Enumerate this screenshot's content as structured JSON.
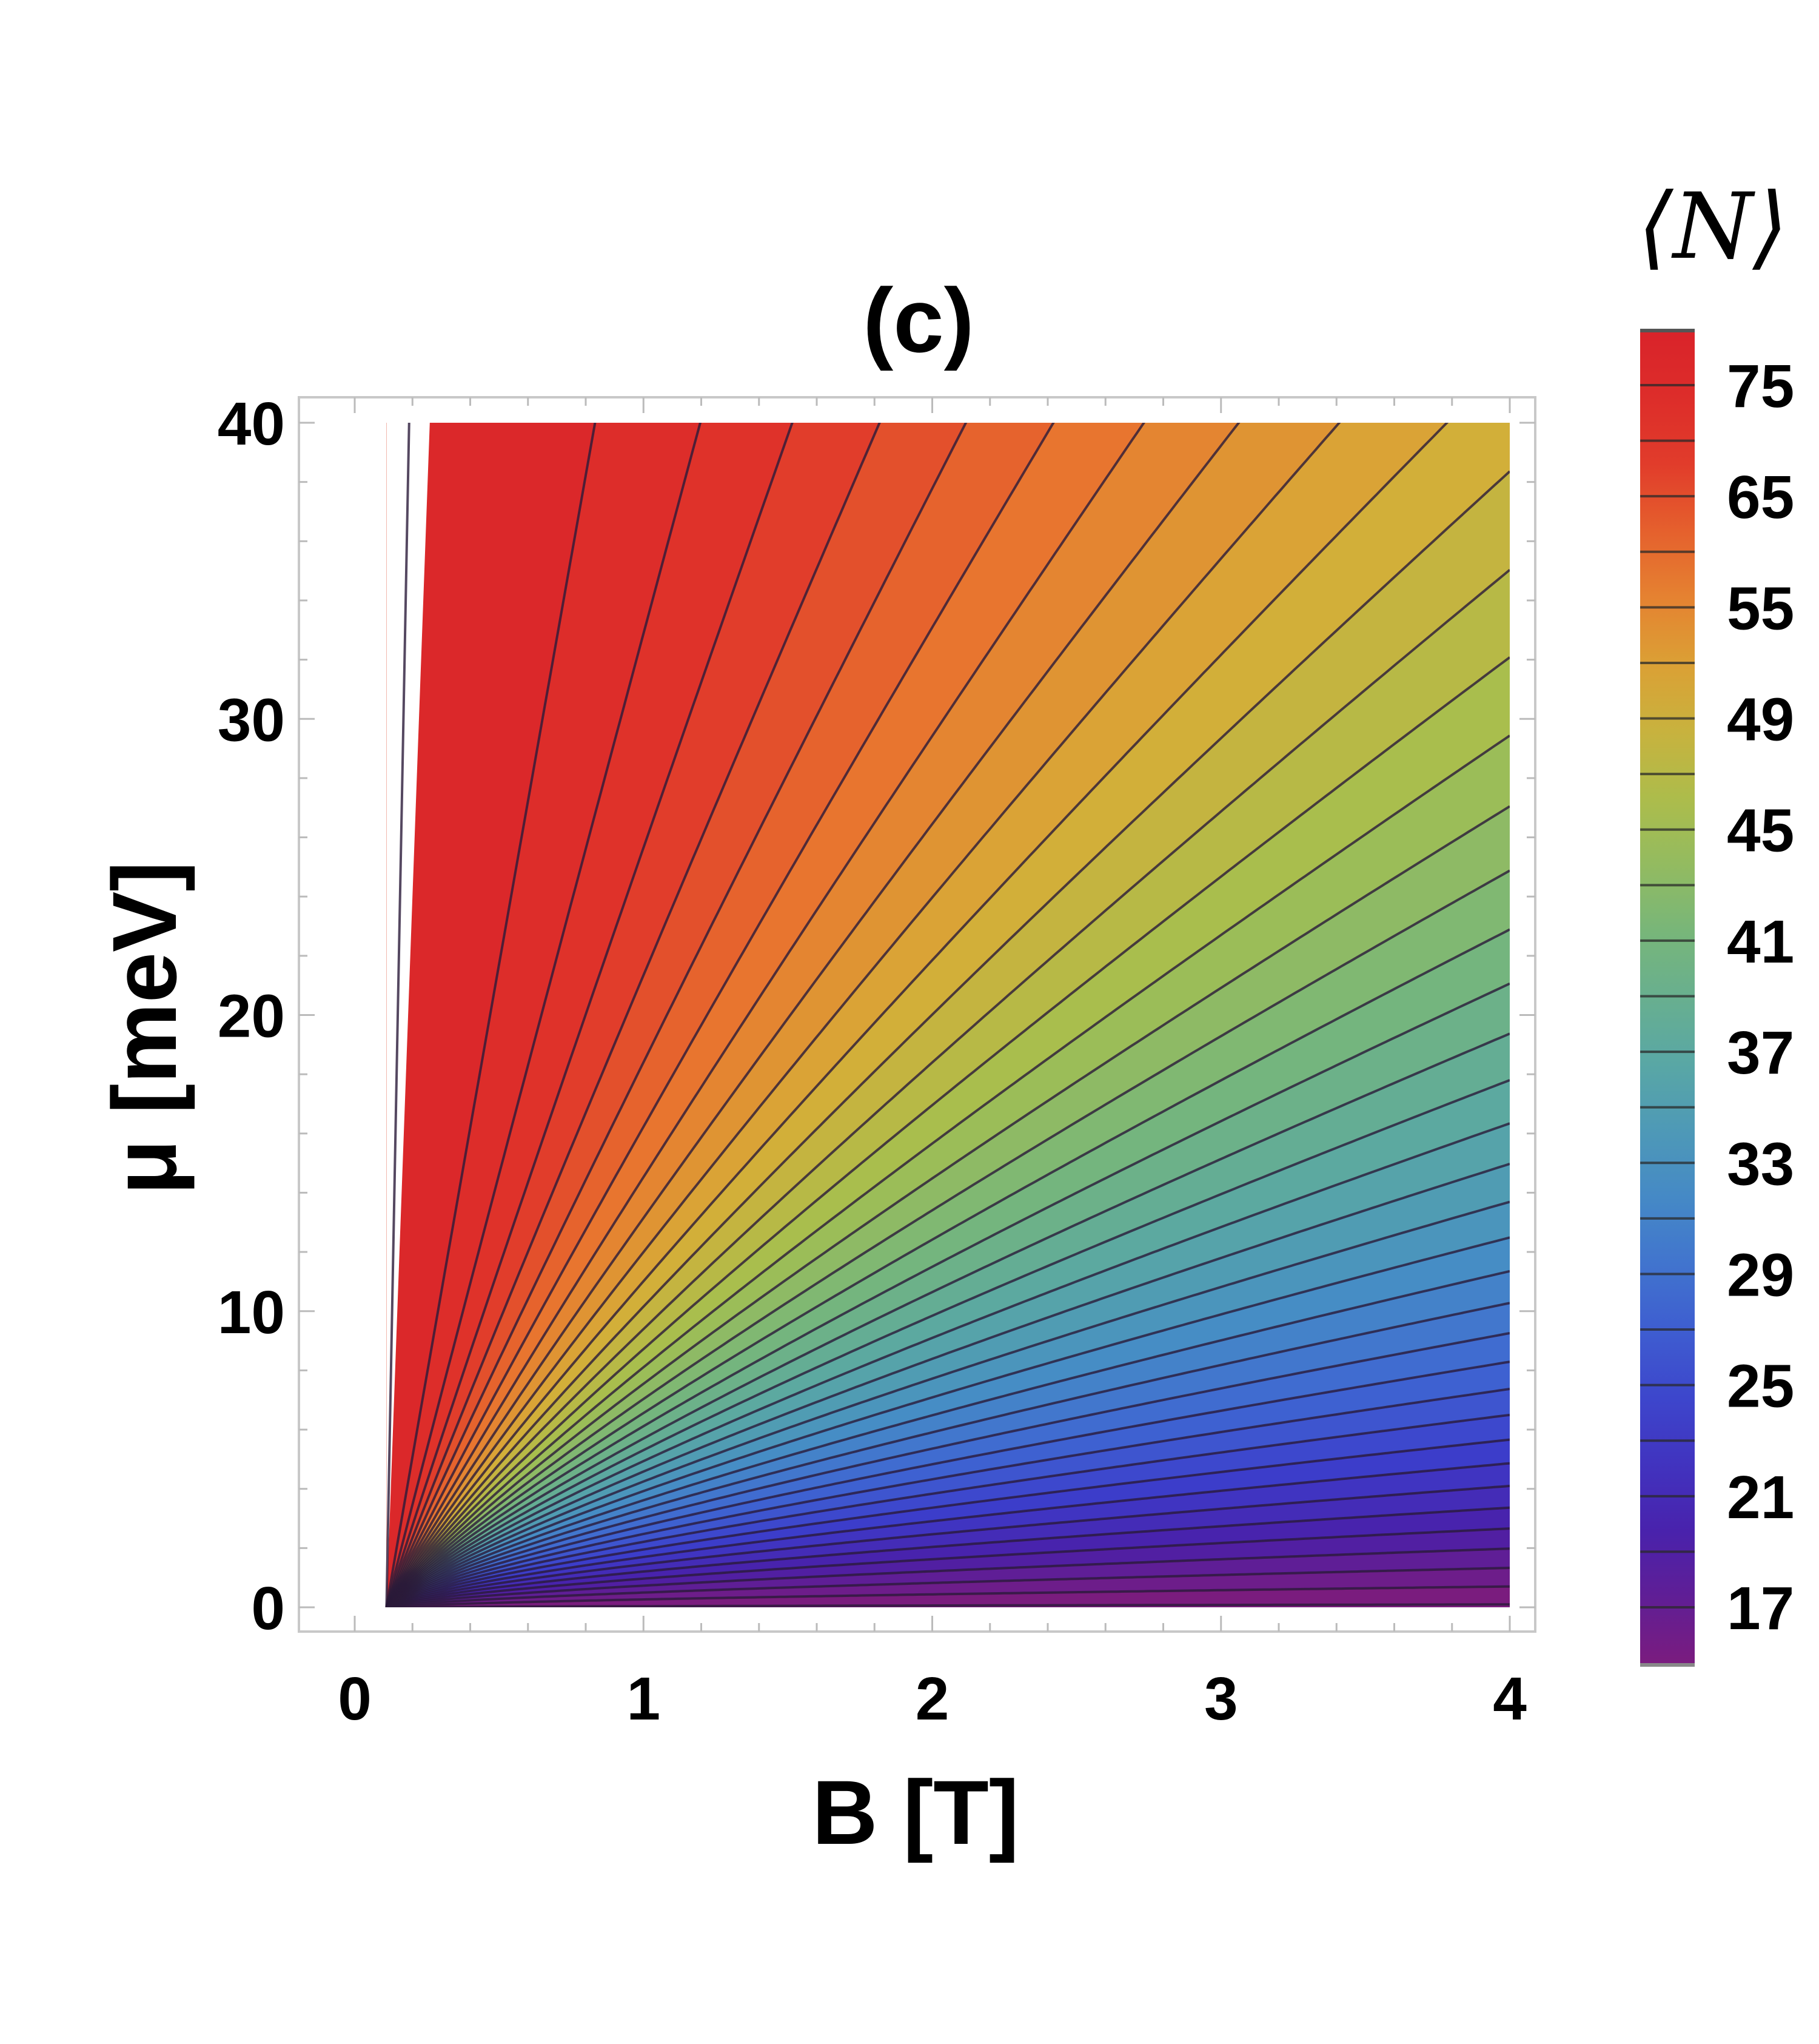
{
  "chart_data": {
    "type": "contour",
    "title": "(c)",
    "xlabel": "B [T]",
    "ylabel": "μ [meV]",
    "colorbar_label": "⟨N⟩",
    "xlim": [
      0,
      4
    ],
    "ylim": [
      0,
      40
    ],
    "x_ticks": [
      "0",
      "1",
      "2",
      "3",
      "4"
    ],
    "y_ticks": [
      "0",
      "10",
      "20",
      "30",
      "40"
    ],
    "colorbar_ticks": [
      "75",
      "65",
      "55",
      "49",
      "45",
      "41",
      "37",
      "33",
      "29",
      "25",
      "21",
      "17"
    ],
    "contour_levels_count": 40,
    "colormap_stops": [
      "#7b1c7e",
      "#4a1fa8",
      "#3c3dcb",
      "#3f68d2",
      "#468fc4",
      "#5aa8a3",
      "#76b67b",
      "#a6bf4e",
      "#d7ad37",
      "#e8772f",
      "#e0352a",
      "#d9232a"
    ],
    "series": [
      {
        "name": "contour",
        "x_start": 0.11,
        "y_slope": 0.0
      }
    ]
  }
}
